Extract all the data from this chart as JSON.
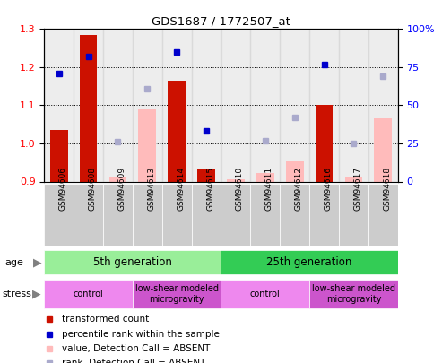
{
  "title": "GDS1687 / 1772507_at",
  "samples": [
    "GSM94606",
    "GSM94608",
    "GSM94609",
    "GSM94613",
    "GSM94614",
    "GSM94615",
    "GSM94610",
    "GSM94611",
    "GSM94612",
    "GSM94616",
    "GSM94617",
    "GSM94618"
  ],
  "transformed_count": [
    1.035,
    1.285,
    null,
    null,
    1.165,
    0.935,
    null,
    null,
    null,
    1.1,
    null,
    null
  ],
  "percentile_rank": [
    71,
    82,
    null,
    null,
    85,
    33,
    null,
    null,
    null,
    77,
    null,
    null
  ],
  "absent_value": [
    null,
    null,
    0.91,
    1.09,
    null,
    null,
    0.905,
    0.923,
    0.952,
    null,
    0.91,
    1.065
  ],
  "absent_rank": [
    null,
    null,
    26,
    61,
    null,
    null,
    null,
    27,
    42,
    null,
    25,
    69
  ],
  "ylim_left": [
    0.9,
    1.3
  ],
  "ylim_right": [
    0,
    100
  ],
  "yticks_left": [
    0.9,
    1.0,
    1.1,
    1.2,
    1.3
  ],
  "yticks_right": [
    0,
    25,
    50,
    75,
    100
  ],
  "age_groups": [
    {
      "label": "5th generation",
      "start": 0,
      "end": 6,
      "color": "#99ee99"
    },
    {
      "label": "25th generation",
      "start": 6,
      "end": 12,
      "color": "#33cc55"
    }
  ],
  "stress_groups": [
    {
      "label": "control",
      "start": 0,
      "end": 3,
      "color": "#ee88ee"
    },
    {
      "label": "low-shear modeled\nmicrogravity",
      "start": 3,
      "end": 6,
      "color": "#cc55cc"
    },
    {
      "label": "control",
      "start": 6,
      "end": 9,
      "color": "#ee88ee"
    },
    {
      "label": "low-shear modeled\nmicrogravity",
      "start": 9,
      "end": 12,
      "color": "#cc55cc"
    }
  ],
  "bar_width": 0.6,
  "bar_color_present": "#cc1100",
  "bar_color_absent": "#ffbbbb",
  "dot_color_present": "#0000cc",
  "dot_color_absent": "#aaaacc",
  "bg_color_samples": "#cccccc",
  "legend_items": [
    {
      "color": "#cc1100",
      "label": "transformed count"
    },
    {
      "color": "#0000cc",
      "label": "percentile rank within the sample"
    },
    {
      "color": "#ffbbbb",
      "label": "value, Detection Call = ABSENT"
    },
    {
      "color": "#aaaacc",
      "label": "rank, Detection Call = ABSENT"
    }
  ]
}
